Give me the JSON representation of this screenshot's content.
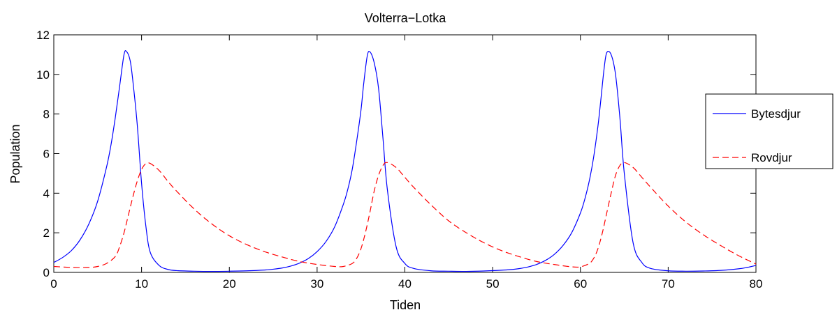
{
  "chart_data": {
    "type": "line",
    "title": "Volterra−Lotka",
    "xlabel": "Tiden",
    "ylabel": "Population",
    "xlim": [
      0,
      80
    ],
    "ylim": [
      0,
      12
    ],
    "xticks": [
      "0",
      "10",
      "20",
      "30",
      "40",
      "50",
      "60",
      "70",
      "80"
    ],
    "yticks": [
      "0",
      "2",
      "4",
      "6",
      "8",
      "10",
      "12"
    ],
    "grid": false,
    "legend_position": "right",
    "series": [
      {
        "name": "Bytesdjur",
        "color": "#0000ff",
        "style": "solid",
        "x": [
          0,
          1,
          2,
          3,
          4,
          5,
          6,
          6.5,
          7,
          7.5,
          8,
          8.3,
          8.7,
          9,
          9.5,
          10,
          10.5,
          11,
          12,
          13,
          14,
          16,
          18,
          20,
          22,
          24,
          25,
          26,
          27,
          28,
          29,
          30,
          31,
          32,
          33,
          33.5,
          34,
          34.5,
          35,
          35.3,
          35.7,
          36,
          36.5,
          37,
          37.5,
          38,
          39,
          40,
          41,
          43,
          45,
          47,
          49,
          51,
          52,
          53,
          54,
          55,
          56,
          57,
          58,
          59,
          60,
          60.5,
          61,
          61.5,
          62,
          62.3,
          62.7,
          63,
          63.5,
          64,
          64.5,
          65,
          66,
          67,
          68,
          70,
          72,
          74,
          76,
          78,
          79,
          80
        ],
        "y": [
          0.5,
          0.75,
          1.1,
          1.65,
          2.45,
          3.6,
          5.3,
          6.4,
          7.8,
          9.4,
          11.0,
          11.15,
          10.7,
          9.7,
          7.5,
          4.5,
          2.3,
          1.0,
          0.35,
          0.15,
          0.09,
          0.06,
          0.05,
          0.06,
          0.08,
          0.12,
          0.16,
          0.22,
          0.32,
          0.47,
          0.7,
          1.05,
          1.55,
          2.3,
          3.45,
          4.2,
          5.2,
          6.6,
          8.2,
          9.5,
          10.9,
          11.15,
          10.6,
          9.3,
          6.8,
          4.2,
          1.3,
          0.45,
          0.2,
          0.08,
          0.06,
          0.05,
          0.07,
          0.11,
          0.14,
          0.19,
          0.27,
          0.4,
          0.6,
          0.9,
          1.35,
          2.0,
          3.0,
          3.7,
          4.6,
          5.8,
          7.4,
          8.6,
          10.3,
          11.1,
          11.0,
          10.0,
          7.8,
          5.0,
          1.5,
          0.5,
          0.2,
          0.08,
          0.06,
          0.07,
          0.1,
          0.18,
          0.25,
          0.35
        ]
      },
      {
        "name": "Rovdjur",
        "color": "#ff0000",
        "style": "dashed",
        "x": [
          0,
          2,
          4,
          5,
          6,
          7,
          7.5,
          8,
          8.5,
          9,
          9.5,
          10,
          10.5,
          11,
          12,
          13,
          14,
          16,
          18,
          20,
          22,
          24,
          26,
          28,
          30,
          32,
          33,
          34,
          34.5,
          35,
          35.5,
          36,
          36.5,
          37,
          37.5,
          38,
          39,
          40,
          41,
          43,
          45,
          47,
          49,
          51,
          53,
          55,
          57,
          59,
          60,
          61,
          61.5,
          62,
          62.5,
          63,
          63.5,
          64,
          64.5,
          65,
          66,
          67,
          68,
          70,
          72,
          74,
          76,
          78,
          80
        ],
        "y": [
          0.3,
          0.25,
          0.25,
          0.3,
          0.45,
          0.8,
          1.3,
          2.0,
          2.9,
          3.8,
          4.6,
          5.2,
          5.5,
          5.5,
          5.15,
          4.6,
          4.1,
          3.2,
          2.45,
          1.85,
          1.4,
          1.05,
          0.78,
          0.55,
          0.4,
          0.3,
          0.3,
          0.45,
          0.7,
          1.2,
          2.0,
          3.0,
          4.1,
          4.9,
          5.4,
          5.55,
          5.3,
          4.8,
          4.3,
          3.4,
          2.6,
          2.0,
          1.5,
          1.1,
          0.8,
          0.55,
          0.4,
          0.28,
          0.28,
          0.45,
          0.7,
          1.2,
          2.0,
          3.0,
          4.0,
          4.9,
          5.4,
          5.55,
          5.3,
          4.8,
          4.3,
          3.35,
          2.55,
          1.9,
          1.35,
          0.85,
          0.42
        ]
      }
    ]
  }
}
